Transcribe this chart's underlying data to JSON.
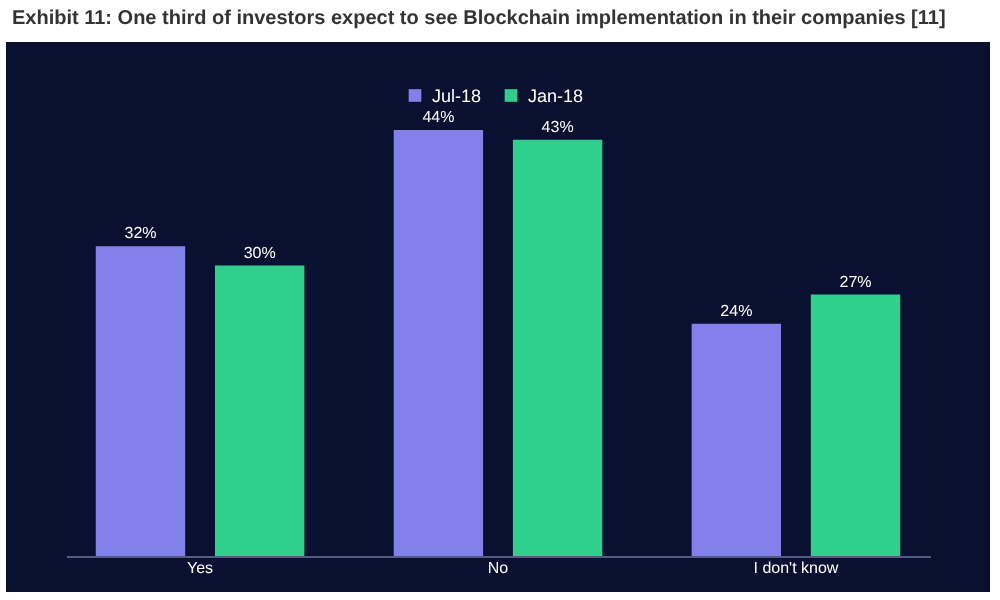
{
  "chart_data": {
    "type": "bar",
    "title": "Exhibit 11: One third of investors expect to see Blockchain implementation in their companies [11]",
    "categories": [
      "Yes",
      "No",
      "I don't know"
    ],
    "series": [
      {
        "name": "Jul-18",
        "color": "#8281ec",
        "values": [
          32,
          44,
          24
        ],
        "value_labels": [
          "32%",
          "44%",
          "24%"
        ]
      },
      {
        "name": "Jan-18",
        "color": "#2fcf8c",
        "values": [
          30,
          43,
          27
        ],
        "value_labels": [
          "30%",
          "43%",
          "27%"
        ]
      }
    ],
    "tick_labels": "x",
    "legend": "top"
  }
}
